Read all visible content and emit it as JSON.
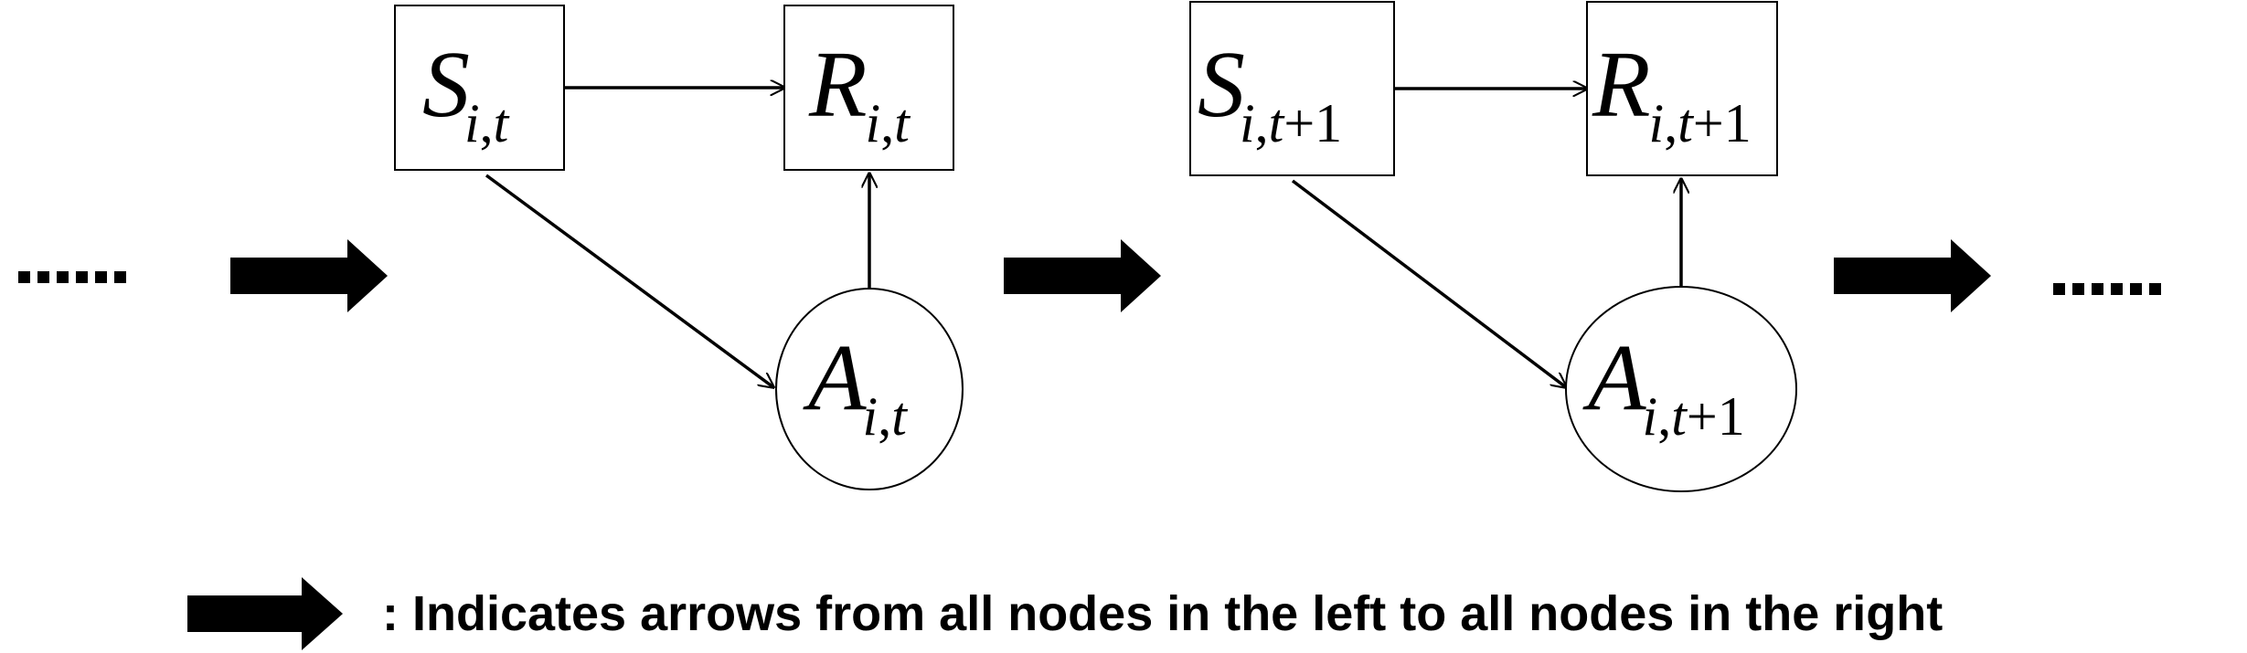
{
  "diagram": {
    "left_ellipsis": "......",
    "right_ellipsis": "......",
    "slice_t": {
      "state": {
        "var": "S",
        "sub_i": "i",
        "sub_sep": ",",
        "sub_t": "t",
        "sub_plus": ""
      },
      "reward": {
        "var": "R",
        "sub_i": "i",
        "sub_sep": ",",
        "sub_t": "t",
        "sub_plus": ""
      },
      "action": {
        "var": "A",
        "sub_i": "i",
        "sub_sep": ",",
        "sub_t": "t",
        "sub_plus": ""
      }
    },
    "slice_t1": {
      "state": {
        "var": "S",
        "sub_i": "i",
        "sub_sep": ",",
        "sub_t": "t",
        "sub_plus": "+1"
      },
      "reward": {
        "var": "R",
        "sub_i": "i",
        "sub_sep": ",",
        "sub_t": "t",
        "sub_plus": "+1"
      },
      "action": {
        "var": "A",
        "sub_i": "i",
        "sub_sep": ",",
        "sub_t": "t",
        "sub_plus": "+1"
      }
    },
    "legend": {
      "text": ": Indicates arrows from all nodes in the left to all nodes in the right"
    }
  }
}
